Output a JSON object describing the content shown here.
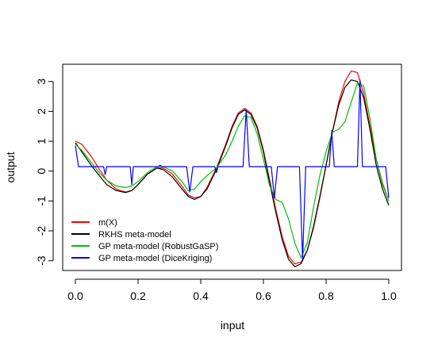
{
  "chart_data": {
    "type": "line",
    "title": "",
    "xlabel": "input",
    "ylabel": "output",
    "xlim": [
      0,
      1
    ],
    "ylim": [
      -3.3,
      3.55
    ],
    "x_ticks": [
      0,
      0.2,
      0.4,
      0.6,
      0.8,
      1
    ],
    "x_tick_labels": [
      "0.0",
      "0.2",
      "0.4",
      "0.6",
      "0.8",
      "1.0"
    ],
    "y_ticks": [
      -3,
      -2,
      -1,
      0,
      1,
      2,
      3
    ],
    "y_tick_labels": [
      "-3",
      "-2",
      "-1",
      "0",
      "1",
      "2",
      "3"
    ],
    "grid": false,
    "legend": "bottom-left",
    "series": [
      {
        "name": "m(X)",
        "color": "#ff0000",
        "x": [
          0,
          0.02,
          0.05,
          0.08,
          0.1,
          0.13,
          0.16,
          0.18,
          0.2,
          0.23,
          0.26,
          0.28,
          0.31,
          0.34,
          0.36,
          0.38,
          0.4,
          0.42,
          0.45,
          0.48,
          0.5,
          0.52,
          0.54,
          0.56,
          0.58,
          0.6,
          0.62,
          0.64,
          0.66,
          0.68,
          0.7,
          0.72,
          0.74,
          0.76,
          0.78,
          0.8,
          0.82,
          0.84,
          0.86,
          0.88,
          0.9,
          0.92,
          0.94,
          0.96,
          0.98,
          1.0
        ],
        "y": [
          1.0,
          0.9,
          0.5,
          0.0,
          -0.3,
          -0.6,
          -0.7,
          -0.65,
          -0.45,
          -0.1,
          0.1,
          0.1,
          -0.1,
          -0.5,
          -0.8,
          -0.9,
          -0.85,
          -0.55,
          0.1,
          0.9,
          1.5,
          1.95,
          2.1,
          1.95,
          1.5,
          0.7,
          -0.3,
          -1.3,
          -2.2,
          -2.85,
          -3.1,
          -3.05,
          -2.65,
          -1.9,
          -0.9,
          0.2,
          1.3,
          2.3,
          3.0,
          3.35,
          3.3,
          2.6,
          1.5,
          0.4,
          -0.4,
          -1.0
        ]
      },
      {
        "name": "RKHS meta-model",
        "color": "#000000",
        "x": [
          0,
          0.02,
          0.05,
          0.08,
          0.1,
          0.13,
          0.16,
          0.18,
          0.2,
          0.23,
          0.26,
          0.28,
          0.31,
          0.34,
          0.36,
          0.38,
          0.4,
          0.42,
          0.45,
          0.48,
          0.5,
          0.52,
          0.54,
          0.56,
          0.58,
          0.6,
          0.62,
          0.64,
          0.66,
          0.68,
          0.7,
          0.72,
          0.74,
          0.76,
          0.78,
          0.8,
          0.82,
          0.84,
          0.86,
          0.88,
          0.9,
          0.92,
          0.94,
          0.96,
          0.98,
          1.0
        ],
        "y": [
          0.95,
          0.65,
          0.2,
          -0.2,
          -0.45,
          -0.65,
          -0.72,
          -0.65,
          -0.45,
          -0.1,
          0.1,
          0.05,
          -0.2,
          -0.6,
          -0.85,
          -0.95,
          -0.85,
          -0.6,
          0.05,
          0.85,
          1.45,
          1.9,
          2.05,
          1.9,
          1.45,
          0.65,
          -0.4,
          -1.4,
          -2.3,
          -2.95,
          -3.2,
          -3.1,
          -2.65,
          -1.85,
          -0.85,
          0.2,
          1.3,
          2.2,
          2.8,
          3.05,
          3.0,
          2.45,
          1.4,
          0.2,
          -0.6,
          -1.15
        ]
      },
      {
        "name": "GP meta-model (RobustGaSP)",
        "color": "#00c000",
        "x": [
          0,
          0.02,
          0.05,
          0.08,
          0.1,
          0.13,
          0.16,
          0.18,
          0.2,
          0.23,
          0.26,
          0.28,
          0.31,
          0.34,
          0.36,
          0.38,
          0.4,
          0.42,
          0.45,
          0.48,
          0.5,
          0.52,
          0.54,
          0.56,
          0.58,
          0.6,
          0.62,
          0.64,
          0.66,
          0.68,
          0.7,
          0.72,
          0.74,
          0.76,
          0.78,
          0.8,
          0.82,
          0.84,
          0.86,
          0.88,
          0.9,
          0.92,
          0.94,
          0.96,
          0.98,
          1.0
        ],
        "y": [
          0.9,
          0.7,
          0.3,
          -0.1,
          -0.3,
          -0.5,
          -0.55,
          -0.5,
          -0.35,
          -0.05,
          0.15,
          0.15,
          0.0,
          -0.35,
          -0.65,
          -0.6,
          -0.35,
          -0.15,
          0.1,
          0.55,
          1.0,
          1.5,
          1.85,
          1.8,
          1.25,
          0.4,
          -0.5,
          -0.95,
          -1.05,
          -1.6,
          -2.4,
          -2.9,
          -2.4,
          -1.2,
          -0.15,
          0.65,
          1.3,
          1.4,
          1.65,
          2.3,
          2.95,
          2.85,
          1.75,
          0.4,
          -0.45,
          -1.0
        ]
      },
      {
        "name": "GP meta-model (DiceKriging)",
        "color": "#0000ff",
        "x": [
          0,
          0.01,
          0.09,
          0.095,
          0.1,
          0.175,
          0.18,
          0.185,
          0.265,
          0.27,
          0.275,
          0.355,
          0.365,
          0.375,
          0.445,
          0.45,
          0.455,
          0.535,
          0.545,
          0.555,
          0.625,
          0.635,
          0.645,
          0.715,
          0.725,
          0.735,
          0.81,
          0.818,
          0.826,
          0.9,
          0.908,
          0.916,
          0.99,
          1.0
        ],
        "y": [
          0.85,
          0.15,
          0.15,
          -0.12,
          0.15,
          0.15,
          -0.45,
          0.15,
          0.15,
          0.2,
          0.15,
          0.15,
          -0.7,
          0.15,
          0.15,
          -0.05,
          0.15,
          0.15,
          2.05,
          0.15,
          0.15,
          -0.9,
          0.15,
          0.15,
          -2.95,
          0.15,
          0.15,
          1.35,
          0.15,
          0.15,
          3.05,
          0.15,
          0.15,
          -0.9
        ]
      }
    ]
  }
}
